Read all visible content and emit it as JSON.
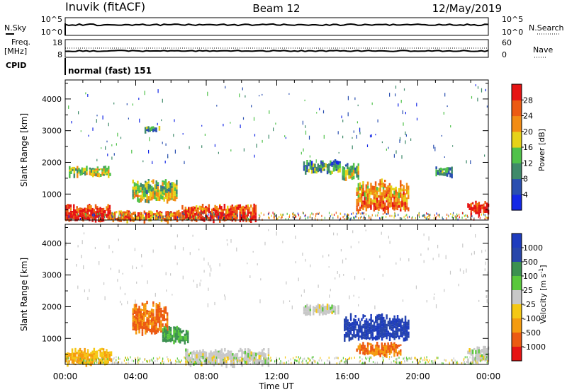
{
  "header": {
    "station": "Inuvik (fitACF)",
    "beam": "Beam 12",
    "date": "12/May/2019"
  },
  "top_panels": {
    "nsky": {
      "label": "N.Sky",
      "ticks_left": [
        "10^5",
        "10^0"
      ],
      "ticks_right": [
        "10^5",
        "10^0"
      ],
      "right_label": "N.Search"
    },
    "freq": {
      "label_line1": "Freq.",
      "label_line2": "[MHz]",
      "ticks_left": [
        "18",
        "8"
      ],
      "ticks_right": [
        "60",
        "0"
      ],
      "right_label": "Nave",
      "cpid_label": "CPID"
    },
    "cpid_text": "normal (fast) 151"
  },
  "x_axis": {
    "label": "Time UT",
    "ticks": [
      "00:00",
      "04:00",
      "08:00",
      "12:00",
      "16:00",
      "20:00",
      "00:00"
    ]
  },
  "colors": {
    "power": [
      "#1428e6",
      "#2a4fb0",
      "#3f8a6a",
      "#50c24a",
      "#e6d219",
      "#f28c14",
      "#ec5a12",
      "#e61414"
    ],
    "velocity": [
      "#e61414",
      "#ec5a12",
      "#f59b0f",
      "#f5c814",
      "#c8c8c8",
      "#5ac83c",
      "#3c9150",
      "#2846aa",
      "#1e3cbe"
    ]
  },
  "chart_data": [
    {
      "type": "heatmap",
      "title": "",
      "xlabel": "",
      "ylabel": "Slant Range [km]",
      "xlim_hours": [
        0,
        24
      ],
      "ylim": [
        180,
        4600
      ],
      "yticks": [
        1000,
        2000,
        3000,
        4000
      ],
      "colorbar": {
        "label": "Power [dB]",
        "ticks": [
          "4",
          "8",
          "12",
          "16",
          "20",
          "24",
          "28"
        ],
        "range": [
          0,
          32
        ]
      },
      "regions": [
        {
          "t0": 0.0,
          "t1": 2.5,
          "r0": 200,
          "r1": 700,
          "value": 27
        },
        {
          "t0": 2.5,
          "t1": 6.5,
          "r0": 200,
          "r1": 500,
          "value": 20
        },
        {
          "t0": 6.6,
          "t1": 10.8,
          "r0": 200,
          "r1": 700,
          "value": 26
        },
        {
          "t0": 0.2,
          "t1": 2.5,
          "r0": 1600,
          "r1": 1900,
          "value": 12
        },
        {
          "t0": 3.8,
          "t1": 6.3,
          "r0": 800,
          "r1": 1500,
          "value": 14
        },
        {
          "t0": 4.5,
          "t1": 5.3,
          "r0": 3000,
          "r1": 3150,
          "value": 8
        },
        {
          "t0": 13.5,
          "t1": 15.6,
          "r0": 1700,
          "r1": 2100,
          "value": 8
        },
        {
          "t0": 15.7,
          "t1": 16.6,
          "r0": 1500,
          "r1": 2000,
          "value": 12
        },
        {
          "t0": 16.5,
          "t1": 19.5,
          "r0": 500,
          "r1": 1500,
          "value": 22
        },
        {
          "t0": 21.0,
          "t1": 22.0,
          "r0": 1600,
          "r1": 1900,
          "value": 8
        },
        {
          "t0": 22.8,
          "t1": 24.0,
          "r0": 400,
          "r1": 800,
          "value": 26
        }
      ]
    },
    {
      "type": "heatmap",
      "title": "",
      "xlabel": "Time UT",
      "ylabel": "Slant Range [km]",
      "xlim_hours": [
        0,
        24
      ],
      "ylim": [
        180,
        4600
      ],
      "yticks": [
        1000,
        2000,
        3000,
        4000
      ],
      "colorbar": {
        "label": "Velocity [m s^-1]",
        "ticks": [
          "1000",
          "500",
          "100",
          "25",
          "-25",
          "-100",
          "-500",
          "-1000"
        ]
      },
      "regions": [
        {
          "t0": 0.0,
          "t1": 2.6,
          "r0": 200,
          "r1": 700,
          "value": -100
        },
        {
          "t0": 3.8,
          "t1": 5.8,
          "r0": 1200,
          "r1": 2200,
          "value": -500
        },
        {
          "t0": 5.5,
          "t1": 7.0,
          "r0": 900,
          "r1": 1400,
          "value": 100
        },
        {
          "t0": 6.8,
          "t1": 11.5,
          "r0": 200,
          "r1": 700,
          "value": 0
        },
        {
          "t0": 13.5,
          "t1": 15.5,
          "r0": 1800,
          "r1": 2100,
          "value": 0
        },
        {
          "t0": 15.8,
          "t1": 19.5,
          "r0": 1000,
          "r1": 1800,
          "value": 1000
        },
        {
          "t0": 16.5,
          "t1": 19.0,
          "r0": 500,
          "r1": 900,
          "value": -500
        },
        {
          "t0": 22.8,
          "t1": 24.0,
          "r0": 300,
          "r1": 800,
          "value": 0
        }
      ]
    }
  ]
}
